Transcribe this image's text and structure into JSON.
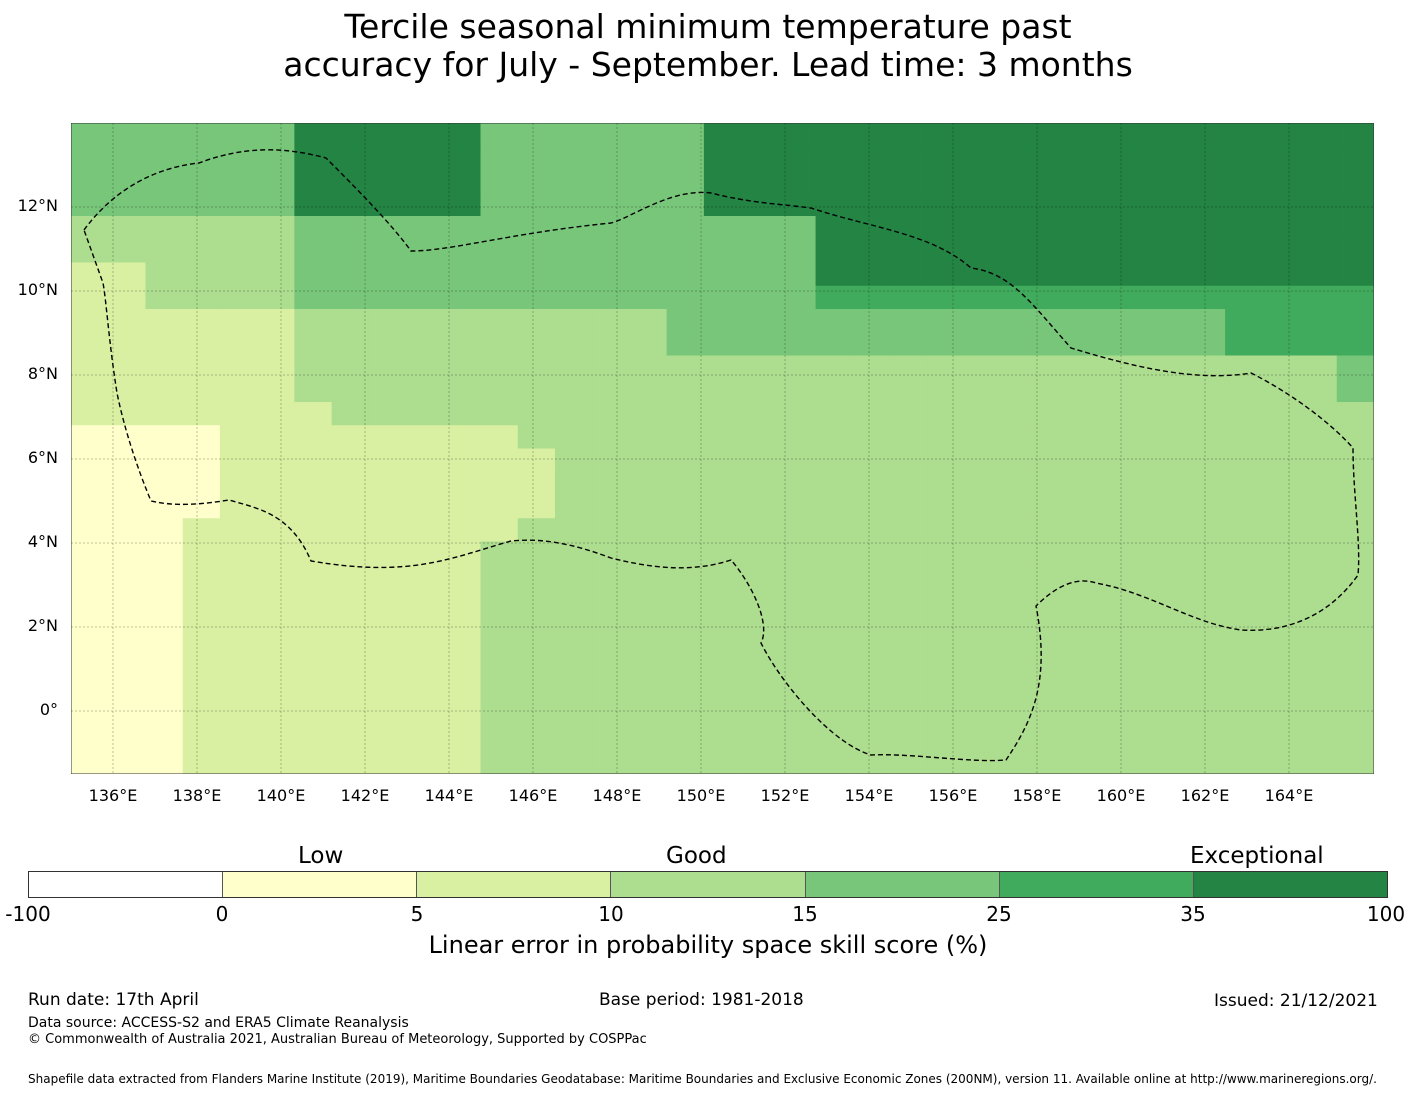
{
  "title_line1": "Tercile seasonal minimum temperature past",
  "title_line2": "accuracy for July - September. Lead time: 3 months",
  "map": {
    "lat_labels": [
      "12°N",
      "10°N",
      "8°N",
      "6°N",
      "4°N",
      "2°N",
      "0°"
    ],
    "lon_labels": [
      "136°E",
      "138°E",
      "140°E",
      "142°E",
      "144°E",
      "146°E",
      "148°E",
      "150°E",
      "152°E",
      "154°E",
      "156°E",
      "158°E",
      "160°E",
      "162°E",
      "164°E"
    ]
  },
  "colorbar": {
    "categories": [
      "Low",
      "Good",
      "Exceptional"
    ],
    "ticks": [
      "-100",
      "0",
      "5",
      "10",
      "15",
      "25",
      "35",
      "100"
    ],
    "colors": [
      "#ffffff",
      "#ffffcc",
      "#d9f0a3",
      "#addd8e",
      "#78c679",
      "#41ab5d",
      "#238443"
    ],
    "label": "Linear error in probability space skill score (%)"
  },
  "footer": {
    "run_date": "Run date: 17th April",
    "base_period": "Base period: 1981-2018",
    "issued": "Issued: 21/12/2021",
    "data_source": "Data source: ACCESS-S2 and ERA5 Climate Reanalysis",
    "copyright": "© Commonwealth of Australia 2021, Australian Bureau of Meteorology, Supported by COSPPac",
    "shapefile": "Shapefile data extracted from Flanders Marine Institute (2019), Maritime Boundaries Geodatabase: Maritime Boundaries and Exclusive Economic Zones (200NM), version 11. Available online at http://www.marineregions.org/."
  },
  "grid": [
    "44444466666444444666666666666666666",
    "44444466666444444666666666666666666",
    "44444466666444444666666666666666666",
    "44444466666444444666666666666666666",
    "33333344444444444444666666666666666",
    "33333344444444444444666666666666666",
    "22333344444444444444666666666666666",
    "22333344444444444444555555555555555",
    "22222233333333334444444444444445555",
    "22222233333333334444444444444445555",
    "22222233333333333333333333333333334",
    "22222233333333333333333333333333334",
    "22222223333333333333333333333333333",
    "11112222222233333333333333333333333",
    "11112222222223333333333333333333333",
    "11112222222223333333333333333333333",
    "11112222222223333333333333333333333",
    "11122222222233333333333333333333333",
    "11122222222333333333333333333333333",
    "11122222222333333333333333333333333",
    "11122222222333333333333333333333333",
    "11122222222333333333333333333333333",
    "11122222222333333333333333333333333",
    "11122222222333333333333333333333333",
    "11122222222333333333333333333333333",
    "11122222222333333333333333333333333",
    "11122222222333333333333333333333333",
    "11122222222333333333333333333333333"
  ]
}
